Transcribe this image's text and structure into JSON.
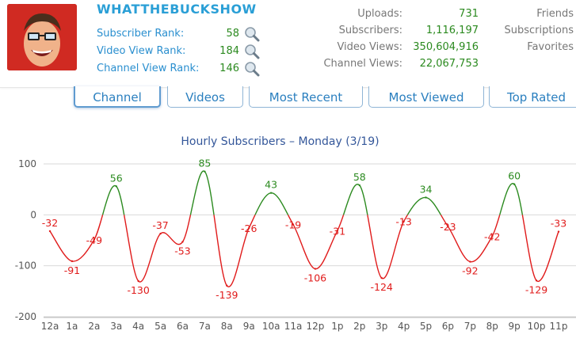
{
  "channel": {
    "name": "WHATTHEBUCKSHOW",
    "ranks": [
      {
        "label": "Subscriber Rank:",
        "value": "58"
      },
      {
        "label": "Video View Rank:",
        "value": "184"
      },
      {
        "label": "Channel View Rank:",
        "value": "146"
      }
    ],
    "stats": [
      {
        "label": "Uploads:",
        "value": "731"
      },
      {
        "label": "Subscribers:",
        "value": "1,116,197"
      },
      {
        "label": "Video Views:",
        "value": "350,604,916"
      },
      {
        "label": "Channel Views:",
        "value": "22,067,753"
      }
    ],
    "right_links": [
      "Friends",
      "Subscriptions",
      "Favorites"
    ]
  },
  "tabs": [
    {
      "label": "Channel",
      "active": true
    },
    {
      "label": "Videos",
      "active": false
    },
    {
      "label": "Most Recent",
      "active": false
    },
    {
      "label": "Most Viewed",
      "active": false
    },
    {
      "label": "Top Rated",
      "active": false
    }
  ],
  "colors": {
    "positive": "#2b8a1f",
    "negative": "#e01b1b",
    "link": "#2a8fcf",
    "title": "#2a9fd6"
  },
  "icons": {
    "rank_lookup": "magnifier-icon",
    "avatar": "avatar-photo"
  },
  "chart_data": {
    "type": "line",
    "title": "Hourly Subscribers – Monday (3/19)",
    "categories": [
      "12a",
      "1a",
      "2a",
      "3a",
      "4a",
      "5a",
      "6a",
      "7a",
      "8a",
      "9a",
      "10a",
      "11a",
      "12p",
      "1p",
      "2p",
      "3p",
      "4p",
      "5p",
      "6p",
      "7p",
      "8p",
      "9p",
      "10p",
      "11p"
    ],
    "values": [
      -32,
      -91,
      -49,
      56,
      -130,
      -37,
      -53,
      85,
      -139,
      -26,
      43,
      -19,
      -106,
      -31,
      58,
      -124,
      -13,
      34,
      -23,
      -92,
      -42,
      60,
      -129,
      -33
    ],
    "yticks": [
      100,
      0,
      -100,
      -200
    ],
    "ylim": [
      -200,
      100
    ],
    "grid": true,
    "smooth": true,
    "threshold": 0
  }
}
